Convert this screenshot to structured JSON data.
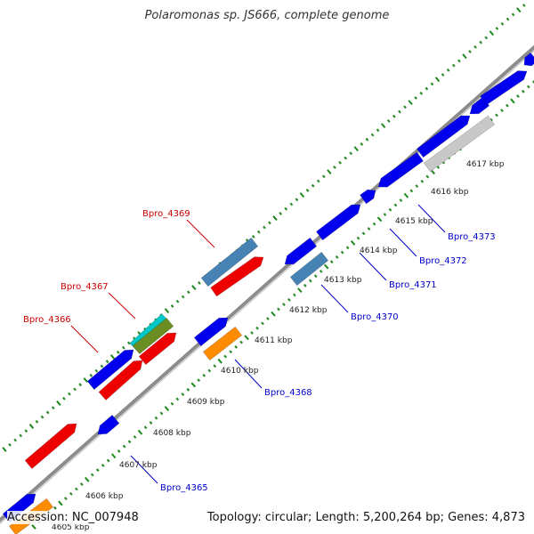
{
  "title": "Polaromonas sp. JS666, complete genome",
  "footer": {
    "accession": "Accession: NC_007948",
    "stats": "Topology: circular; Length: 5,200,264 bp; Genes: 4,873"
  },
  "colors": {
    "backbone": "#8c8c8c",
    "tick_major": "#1a8a1a",
    "tick_minor": "#2c8c2c",
    "forward_label": "#cc0000",
    "reverse_label": "#0000cc",
    "kbp_label": "#222222"
  },
  "kbp_labels": [
    "4605 kbp",
    "4606 kbp",
    "4607 kbp",
    "4608 kbp",
    "4609 kbp",
    "4610 kbp",
    "4611 kbp",
    "4612 kbp",
    "4613 kbp",
    "4614 kbp",
    "4615 kbp",
    "4616 kbp",
    "4617 kbp"
  ],
  "gene_labels": [
    {
      "id": "Bpro_4365",
      "strand": "reverse"
    },
    {
      "id": "Bpro_4366",
      "strand": "forward"
    },
    {
      "id": "Bpro_4367",
      "strand": "forward"
    },
    {
      "id": "Bpro_4368",
      "strand": "reverse"
    },
    {
      "id": "Bpro_4369",
      "strand": "forward"
    },
    {
      "id": "Bpro_4370",
      "strand": "reverse"
    },
    {
      "id": "Bpro_4371",
      "strand": "reverse"
    },
    {
      "id": "Bpro_4372",
      "strand": "reverse"
    },
    {
      "id": "Bpro_4373",
      "strand": "reverse"
    }
  ],
  "feature_colors": [
    "#0000ee",
    "#ee0000",
    "#4682b4",
    "#ff8c00",
    "#00c8c8",
    "#6b8e23",
    "#c8c8c8"
  ]
}
